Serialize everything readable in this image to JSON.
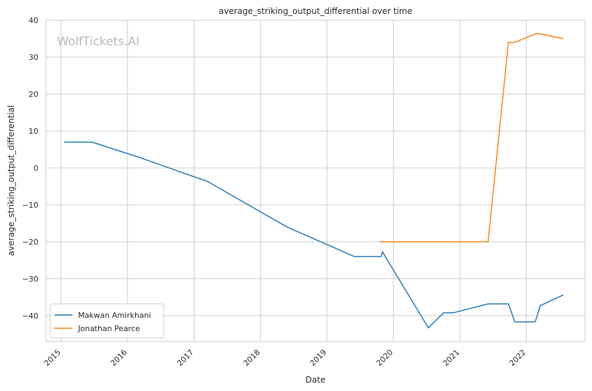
{
  "watermark": "WolfTickets.AI",
  "chart_data": {
    "type": "line",
    "title": "average_striking_output_differential over time",
    "xlabel": "Date",
    "ylabel": "average_striking_output_differential",
    "x_tick_labels": [
      "2015",
      "2016",
      "2017",
      "2018",
      "2019",
      "2020",
      "2021",
      "2022"
    ],
    "y_tick_labels": [
      "−40",
      "−30",
      "−20",
      "−10",
      "0",
      "10",
      "20",
      "30",
      "40"
    ],
    "y_ticks": [
      -40,
      -30,
      -20,
      -10,
      0,
      10,
      20,
      30,
      40
    ],
    "xlim": [
      "2014-10-10",
      "2022-11-20"
    ],
    "ylim": [
      -47,
      40
    ],
    "grid": true,
    "legend_position": "lower-left",
    "series": [
      {
        "name": "Makwan Amirkhani",
        "color": "#1f77b4",
        "points": [
          [
            "2015-01-18",
            7.0
          ],
          [
            "2015-06-20",
            7.0
          ],
          [
            "2016-02-27",
            3.0
          ],
          [
            "2017-03-18",
            -3.7
          ],
          [
            "2018-05-27",
            -16.0
          ],
          [
            "2019-06-01",
            -24.0
          ],
          [
            "2019-10-26",
            -24.0
          ],
          [
            "2019-11-02",
            -22.7
          ],
          [
            "2020-07-12",
            -43.3
          ],
          [
            "2020-10-04",
            -39.2
          ],
          [
            "2020-11-28",
            -39.2
          ],
          [
            "2021-06-05",
            -36.8
          ],
          [
            "2021-09-25",
            -36.8
          ],
          [
            "2021-10-30",
            -41.7
          ],
          [
            "2022-02-19",
            -41.7
          ],
          [
            "2022-03-19",
            -37.3
          ],
          [
            "2022-07-23",
            -34.4
          ]
        ]
      },
      {
        "name": "Jonathan Pearce",
        "color": "#ff7f0e",
        "points": [
          [
            "2019-10-18",
            -20.0
          ],
          [
            "2021-06-05",
            -20.0
          ],
          [
            "2021-09-25",
            34.0
          ],
          [
            "2021-10-30",
            34.0
          ],
          [
            "2022-02-26",
            36.4
          ],
          [
            "2022-03-19",
            36.3
          ],
          [
            "2022-07-23",
            35.0
          ]
        ]
      }
    ]
  }
}
